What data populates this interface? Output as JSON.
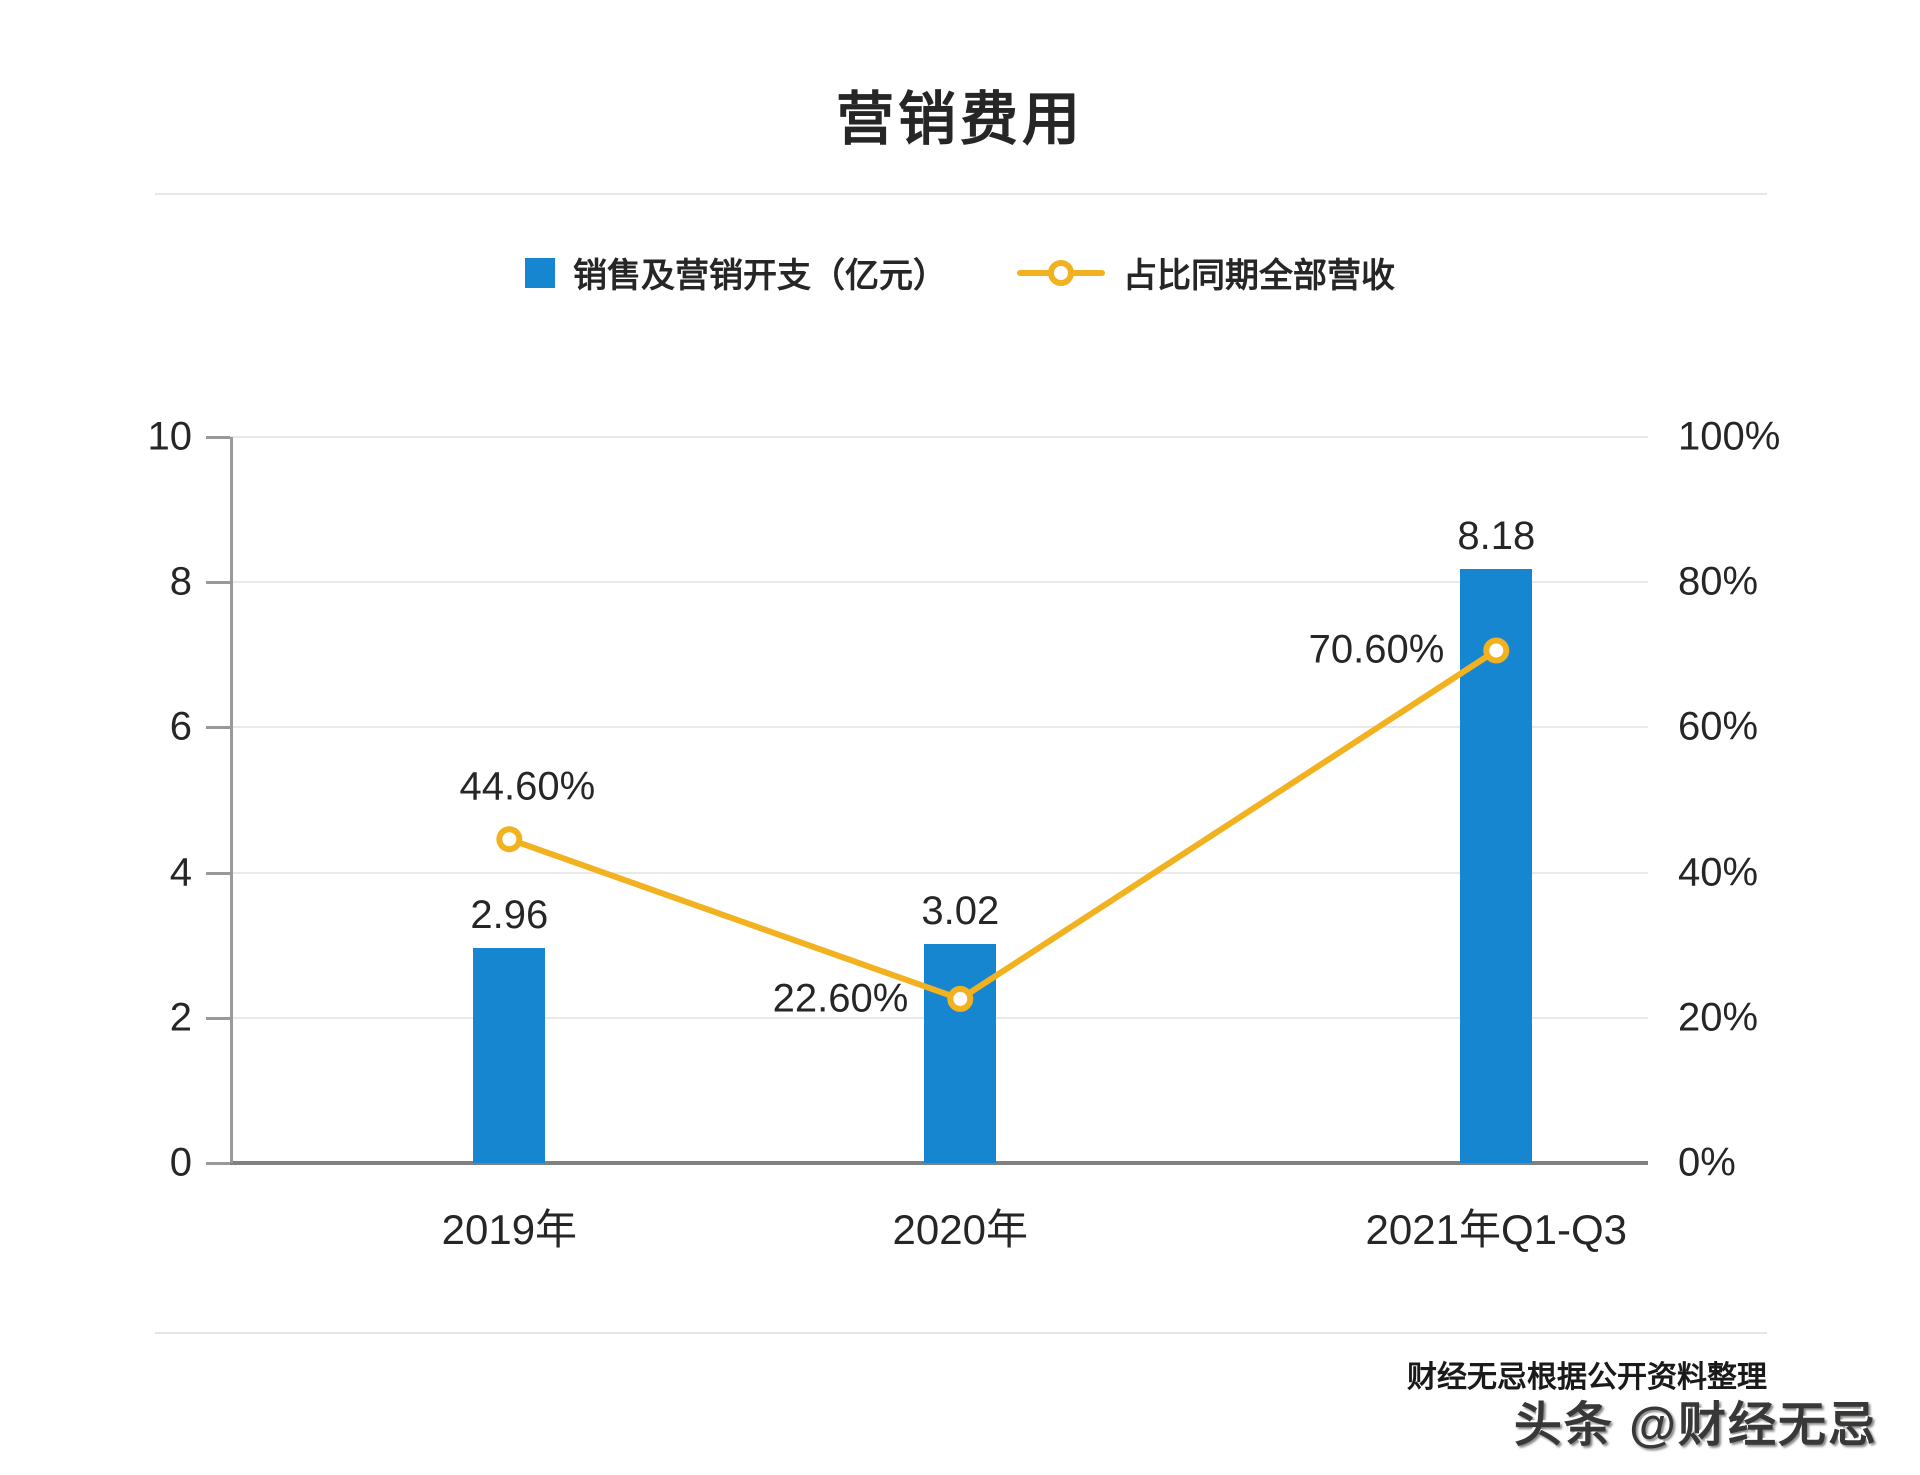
{
  "title": "营销费用",
  "legend": [
    {
      "label": "销售及营销开支（亿元）",
      "type": "bar-swatch",
      "color": "#1786d1"
    },
    {
      "label": "占比同期全部营收",
      "type": "line-marker",
      "color": "#f2b11e"
    }
  ],
  "footer": {
    "source_note": "财经无忌根据公开资料整理",
    "watermark": "头条 @财经无忌"
  },
  "colors": {
    "bar": "#1786d1",
    "line": "#f2b11e",
    "text": "#262626",
    "grid": "#e9e9e9",
    "axis": "#999999",
    "baseline": "#808080"
  },
  "chart_data": {
    "type": "bar",
    "subtype": "combo-bar-line-dual-axis",
    "title": "营销费用",
    "categories": [
      "2019年",
      "2020年",
      "2021年Q1-Q3"
    ],
    "series": [
      {
        "name": "销售及营销开支（亿元）",
        "type": "bar",
        "axis": "left",
        "color": "#1786d1",
        "values": [
          2.96,
          3.02,
          8.18
        ],
        "labels": [
          "2.96",
          "3.02",
          "8.18"
        ]
      },
      {
        "name": "占比同期全部营收",
        "type": "line",
        "axis": "right",
        "color": "#f2b11e",
        "values": [
          44.6,
          22.6,
          70.6
        ],
        "labels": [
          "44.60%",
          "22.60%",
          "70.60%"
        ]
      }
    ],
    "left_axis": {
      "min": 0,
      "max": 10,
      "ticks": [
        0,
        2,
        4,
        6,
        8,
        10
      ],
      "tick_labels": [
        "0",
        "2",
        "4",
        "6",
        "8",
        "10"
      ]
    },
    "right_axis": {
      "min": 0,
      "max": 100,
      "ticks": [
        0,
        20,
        40,
        60,
        80,
        100
      ],
      "tick_labels": [
        "0%",
        "20%",
        "40%",
        "60%",
        "80%",
        "100%"
      ]
    },
    "grid": true,
    "legend_position": "top"
  }
}
